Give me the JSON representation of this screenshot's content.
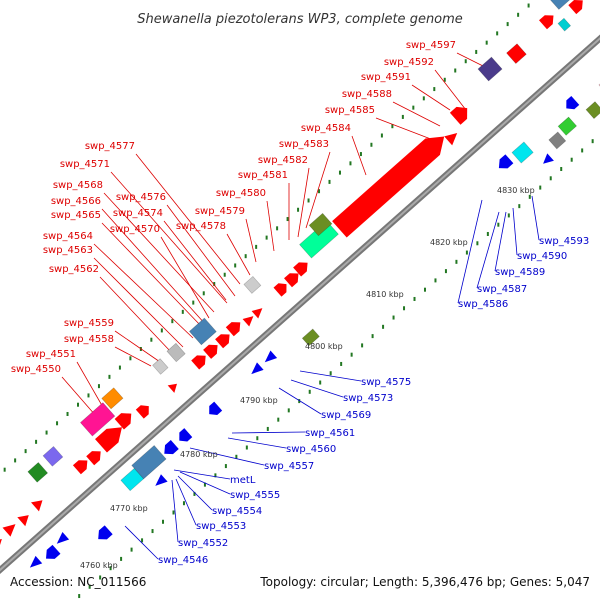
{
  "title": "Shewanella piezotolerans WP3, complete genome",
  "footer": {
    "accession": "Accession: NC_011566",
    "summary": "Topology: circular; Length: 5,396,476 bp; Genes: 5,047"
  },
  "colors": {
    "forward_cds": "#ff0000",
    "reverse_cds": "#0000ee",
    "forward_label": "#dd0000",
    "reverse_label": "#0000cc",
    "backbone": "#777777",
    "tick": "#227722"
  },
  "ticks": [
    "4760 kbp",
    "4770 kbp",
    "4780 kbp",
    "4790 kbp",
    "4800 kbp",
    "4810 kbp",
    "4820 kbp",
    "4830 kbp"
  ],
  "forward_labels": [
    "swp_4597",
    "swp_4592",
    "swp_4591",
    "swp_4588",
    "swp_4585",
    "swp_4584",
    "swp_4583",
    "swp_4582",
    "swp_4581",
    "swp_4580",
    "swp_4579",
    "swp_4578",
    "swp_4577",
    "swp_4576",
    "swp_4574",
    "swp_4571",
    "swp_4570",
    "swp_4568",
    "swp_4566",
    "swp_4565",
    "swp_4564",
    "swp_4563",
    "swp_4562",
    "swp_4559",
    "swp_4558",
    "swp_4551",
    "swp_4550"
  ],
  "reverse_labels": [
    "swp_4593",
    "swp_4590",
    "swp_4589",
    "swp_4587",
    "swp_4586",
    "swp_4575",
    "swp_4573",
    "swp_4569",
    "swp_4561",
    "swp_4560",
    "swp_4557",
    "metL",
    "swp_4555",
    "swp_4554",
    "swp_4553",
    "swp_4552",
    "swp_4546"
  ]
}
